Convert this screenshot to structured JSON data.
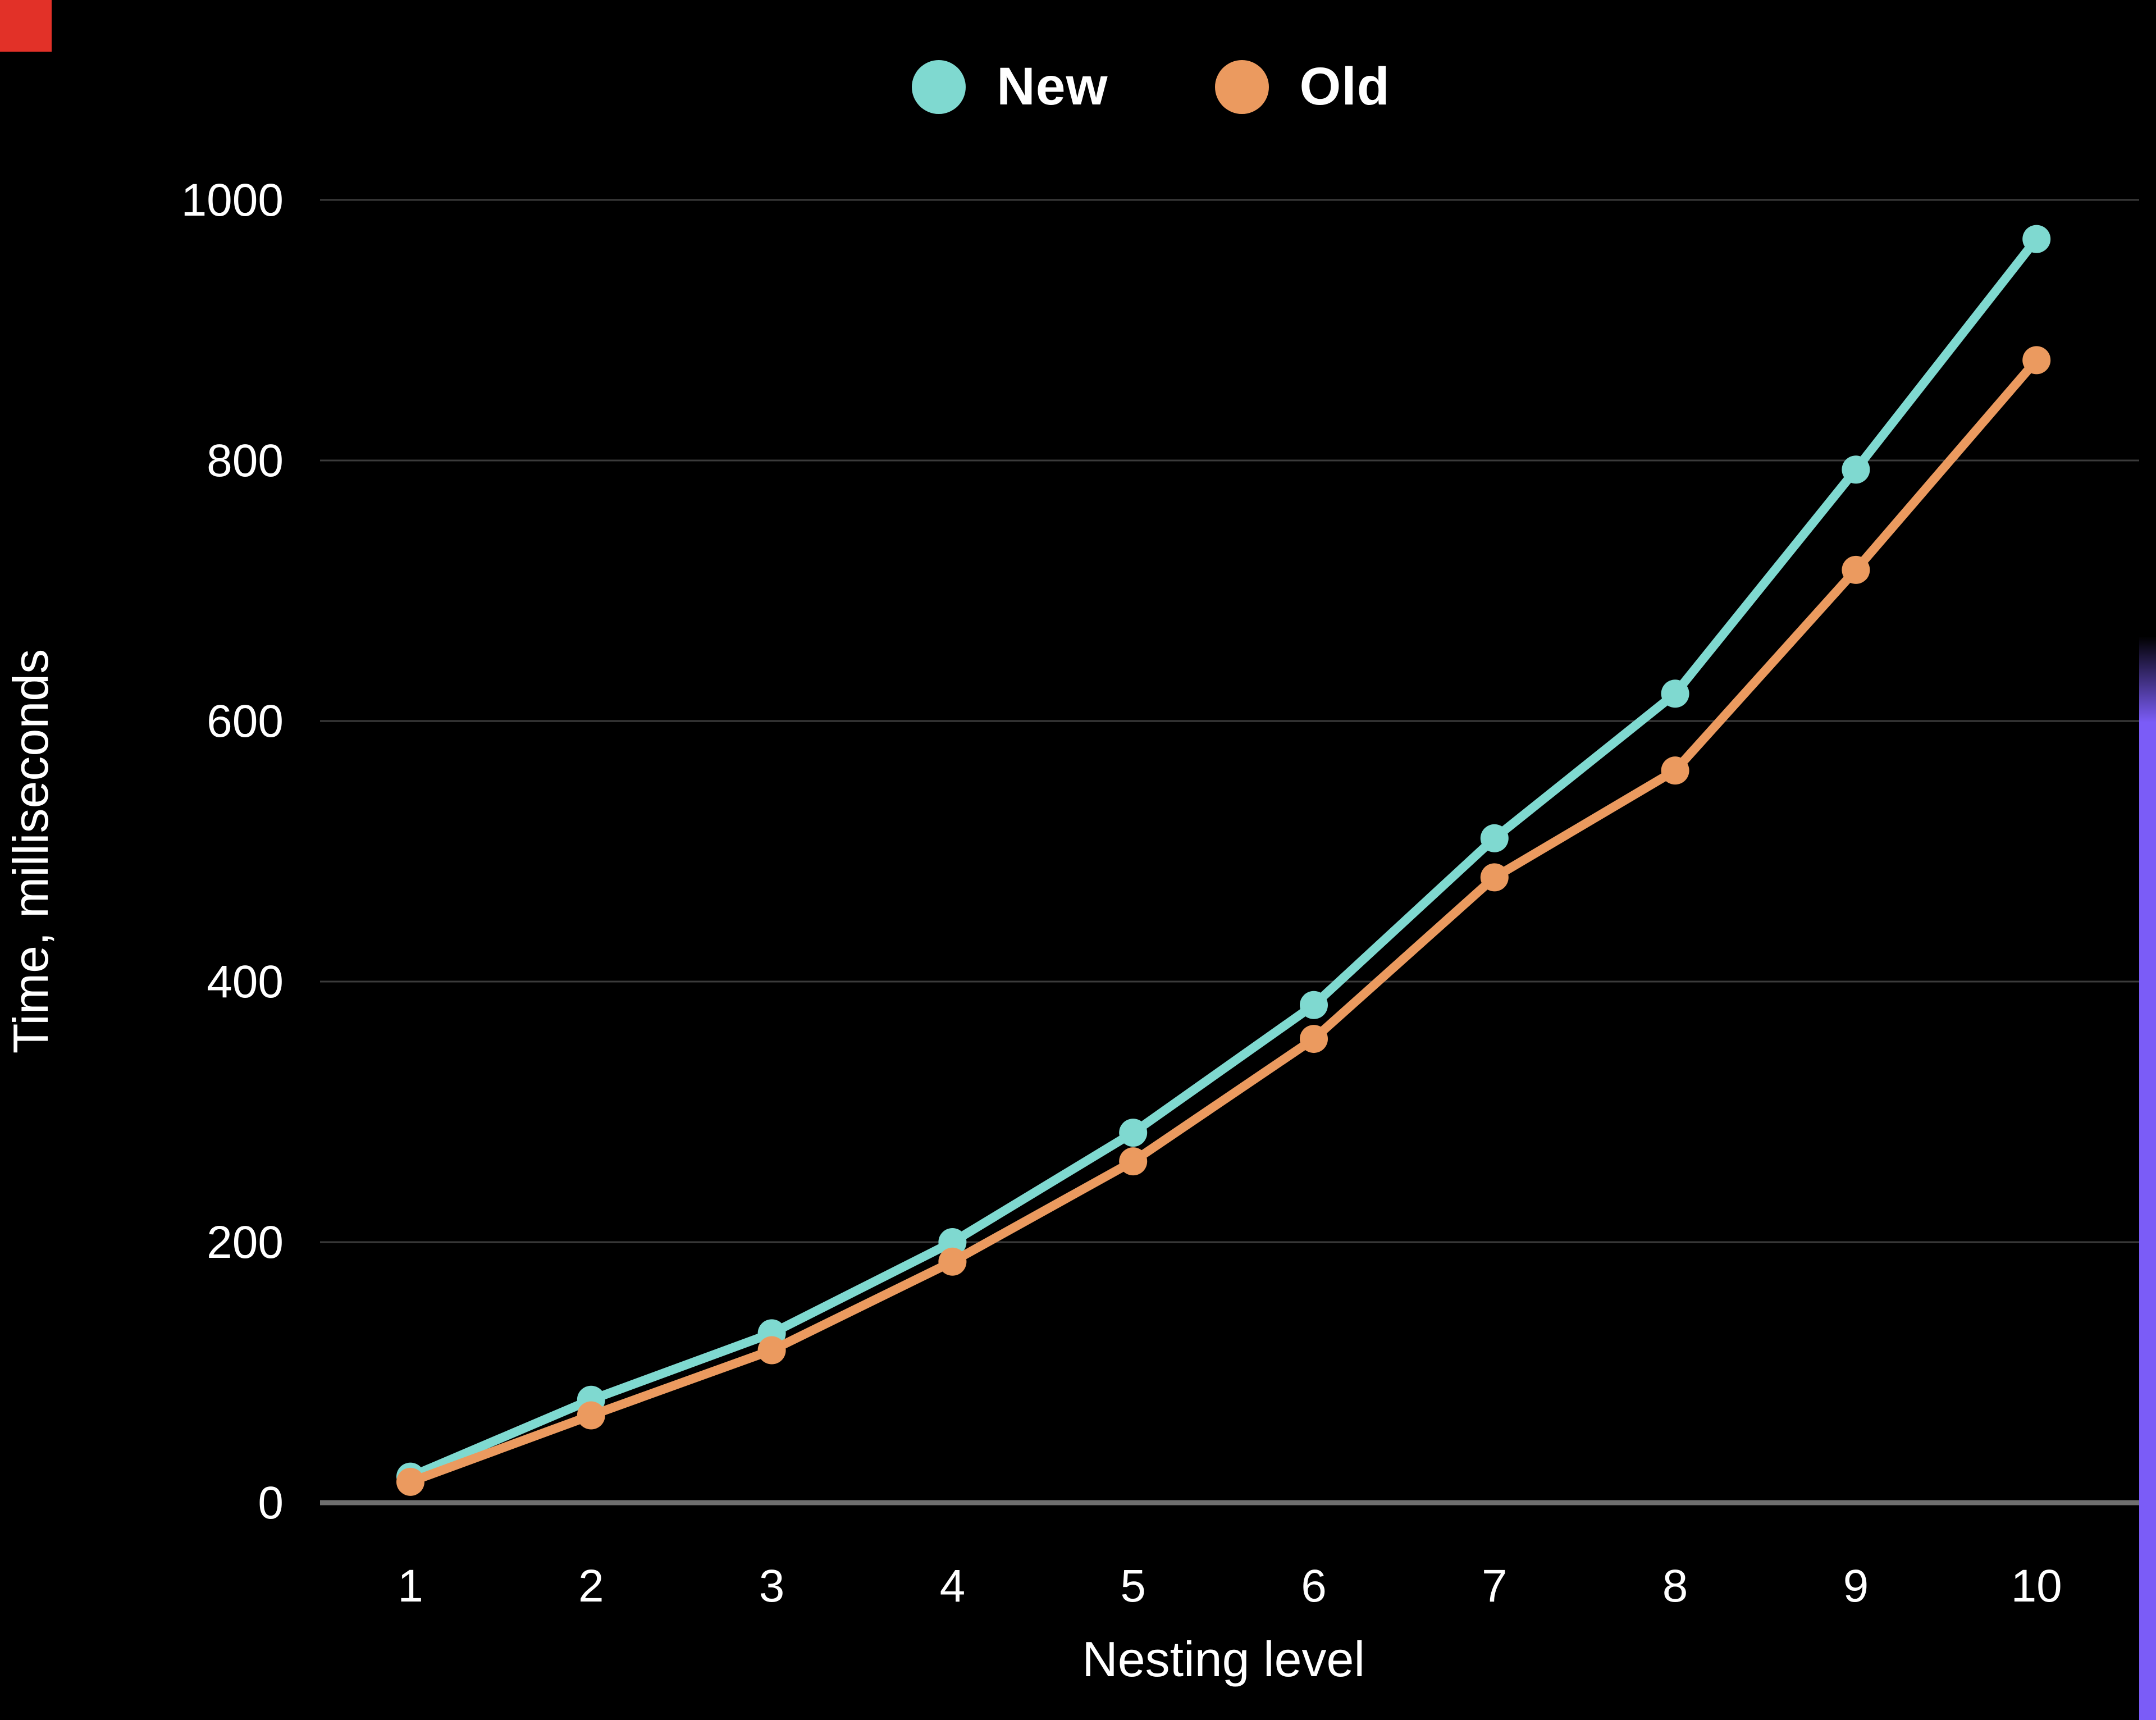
{
  "chart_data": {
    "type": "line",
    "x": [
      1,
      2,
      3,
      4,
      5,
      6,
      7,
      8,
      9,
      10
    ],
    "series": [
      {
        "name": "New",
        "color": "#7fd9d0",
        "values": [
          20,
          79,
          130,
          200,
          284,
          382,
          510,
          621,
          793,
          970
        ]
      },
      {
        "name": "Old",
        "color": "#eb9a5f",
        "values": [
          16,
          67,
          117,
          185,
          262,
          356,
          480,
          562,
          716,
          877
        ]
      }
    ],
    "title": "",
    "xlabel": "Nesting level",
    "ylabel": "Time, milliseconds",
    "ylim": [
      0,
      1000
    ],
    "yticks": [
      0,
      200,
      400,
      600,
      800,
      1000
    ],
    "xticks": [
      "1",
      "2",
      "3",
      "4",
      "5",
      "6",
      "7",
      "8",
      "9",
      "10"
    ],
    "grid": "horizontal",
    "legend_position": "top-center"
  },
  "legend": {
    "items": [
      {
        "label": "New",
        "color": "#7fd9d0"
      },
      {
        "label": "Old",
        "color": "#eb9a5f"
      }
    ]
  },
  "colors": {
    "background": "#000000",
    "gridline": "#3b3b3b",
    "axis_line": "#6f6f6f",
    "text": "#ffffff",
    "corner_accent_red": "#e23128",
    "edge_accent_purple": "#7b5cf7"
  }
}
